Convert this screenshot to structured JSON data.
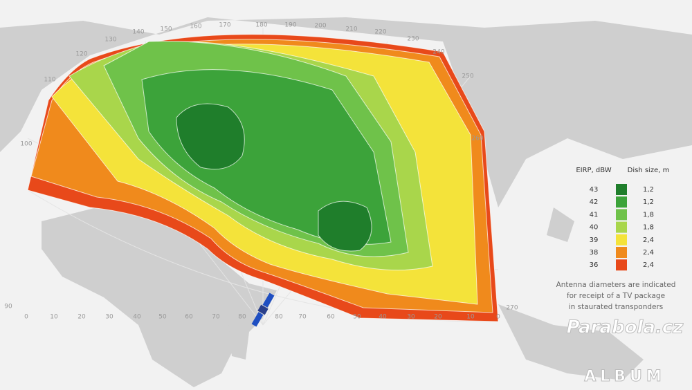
{
  "legend": {
    "eirp_header": "EIRP, dBW",
    "dish_header": "Dish size, m",
    "rows": [
      {
        "eirp": 43,
        "dish": "1,2",
        "color": "#1f7e2b"
      },
      {
        "eirp": 42,
        "dish": "1,2",
        "color": "#3ca33a"
      },
      {
        "eirp": 41,
        "dish": "1,8",
        "color": "#6fc24a"
      },
      {
        "eirp": 40,
        "dish": "1,8",
        "color": "#a9d64b"
      },
      {
        "eirp": 39,
        "dish": "2,4",
        "color": "#f4e33a"
      },
      {
        "eirp": 38,
        "dish": "2,4",
        "color": "#f08a1c"
      },
      {
        "eirp": 36,
        "dish": "2,4",
        "color": "#e8491a"
      }
    ]
  },
  "note": [
    "Antenna diameters are indicated",
    "for receipt of a TV package",
    "in staurated transponders"
  ],
  "top_labels": [
    100,
    110,
    120,
    130,
    140,
    150,
    160,
    170,
    180,
    190,
    200,
    210,
    220,
    230,
    240,
    250,
    260,
    270
  ],
  "bottom_labels": [
    90,
    0,
    10,
    20,
    30,
    40,
    50,
    60,
    70,
    80,
    80,
    70,
    60,
    50,
    40,
    30,
    20,
    10,
    0
  ],
  "watermark": {
    "title": "Parabola.cz",
    "subtitle": "ALBUM"
  }
}
